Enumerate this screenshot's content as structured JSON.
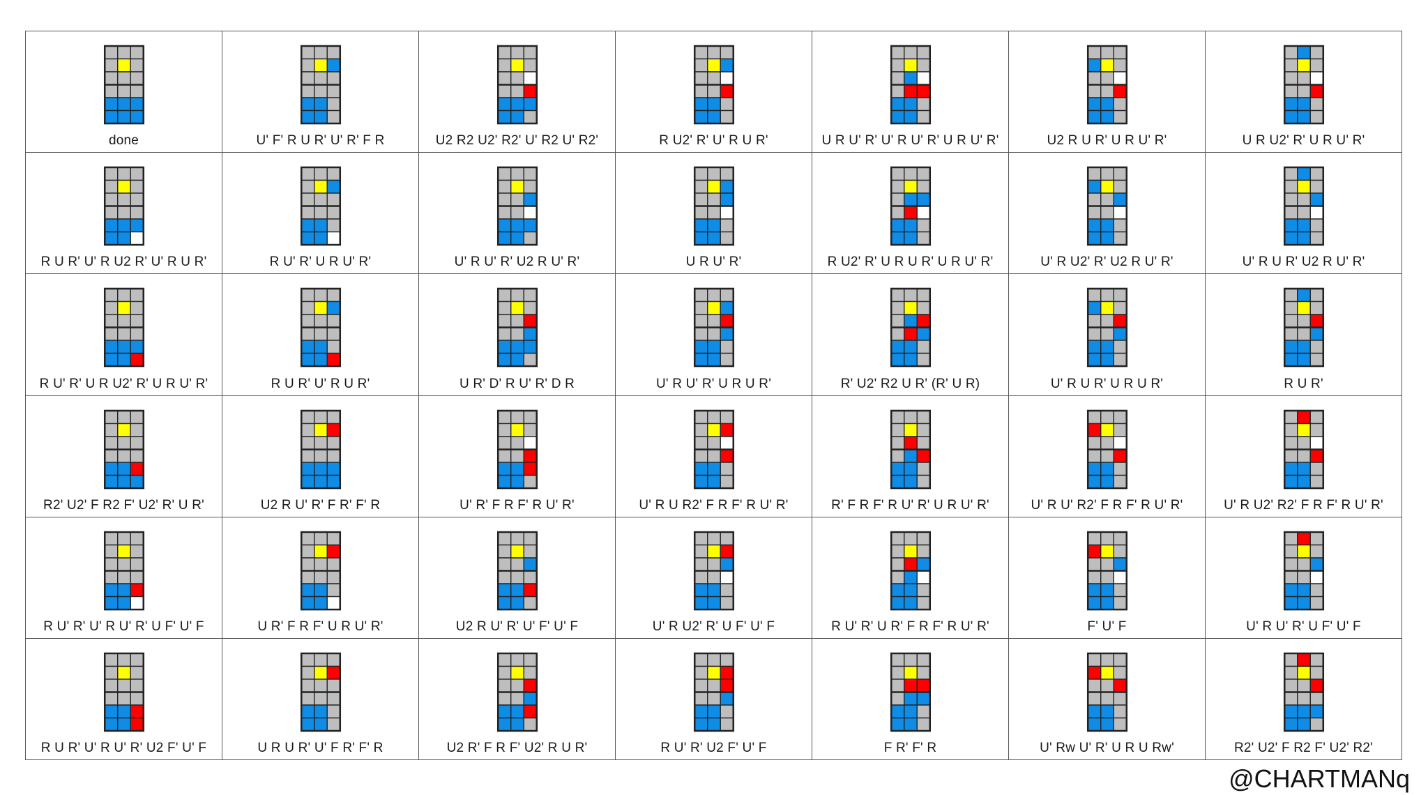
{
  "colors": {
    "G": "#bebebe",
    "Y": "#ffff00",
    "B": "#0f8ce6",
    "R": "#ff0000",
    "W": "#ffffff",
    "border": "#222222"
  },
  "credit": "@CHARTMANq",
  "cases": [
    {
      "alg": "done",
      "grid": [
        "GGG",
        "GYG",
        "GGG",
        "GGG",
        "BBB",
        "BBB"
      ]
    },
    {
      "alg": "U' F' R U R' U' R' F R",
      "grid": [
        "GGG",
        "GYB",
        "GGG",
        "GGG",
        "BBG",
        "BBG"
      ]
    },
    {
      "alg": "U2 R2 U2' R2' U' R2 U' R2'",
      "grid": [
        "GGG",
        "GYG",
        "GGW",
        "GGR",
        "BBB",
        "BBG"
      ]
    },
    {
      "alg": "R U2' R' U' R U R'",
      "grid": [
        "GGG",
        "GYB",
        "GGW",
        "GGR",
        "BBG",
        "BBG"
      ]
    },
    {
      "alg": "U R U' R' U' R U' R' U R U' R'",
      "grid": [
        "GGG",
        "GYG",
        "GBW",
        "GRR",
        "BBG",
        "BBG"
      ]
    },
    {
      "alg": "U2 R U R' U R U' R'",
      "grid": [
        "GGG",
        "BYG",
        "GGW",
        "GGR",
        "BBG",
        "BBG"
      ]
    },
    {
      "alg": "U R U2' R' U R U' R'",
      "grid": [
        "GBG",
        "GYG",
        "GGW",
        "GGR",
        "BBG",
        "BBG"
      ]
    },
    {
      "alg": "R U R' U' R U2 R' U' R U R'",
      "grid": [
        "GGG",
        "GYG",
        "GGG",
        "GGG",
        "BBB",
        "BBW"
      ]
    },
    {
      "alg": "R U' R' U R U' R'",
      "grid": [
        "GGG",
        "GYB",
        "GGG",
        "GGG",
        "BBG",
        "BBW"
      ]
    },
    {
      "alg": "U' R U' R' U2 R U' R'",
      "grid": [
        "GGG",
        "GYG",
        "GGB",
        "GGW",
        "BBB",
        "BBG"
      ]
    },
    {
      "alg": "U R U' R'",
      "grid": [
        "GGG",
        "GYB",
        "GGB",
        "GGW",
        "BBG",
        "BBG"
      ]
    },
    {
      "alg": "R U2' R' U R U R' U R U' R'",
      "grid": [
        "GGG",
        "GYG",
        "GBB",
        "GRW",
        "BBG",
        "BBG"
      ]
    },
    {
      "alg": "U' R U2' R' U2 R U' R'",
      "grid": [
        "GGG",
        "BYG",
        "GGB",
        "GGW",
        "BBG",
        "BBG"
      ]
    },
    {
      "alg": "U' R U R' U2 R U' R'",
      "grid": [
        "GBG",
        "GYG",
        "GGB",
        "GGW",
        "BBG",
        "BBG"
      ]
    },
    {
      "alg": "R U' R' U R U2' R' U R U' R'",
      "grid": [
        "GGG",
        "GYG",
        "GGG",
        "GGG",
        "BBB",
        "BBR"
      ]
    },
    {
      "alg": "R U R' U' R U R'",
      "grid": [
        "GGG",
        "GYB",
        "GGG",
        "GGG",
        "BBG",
        "BBR"
      ]
    },
    {
      "alg": "U R' D' R U' R' D R",
      "grid": [
        "GGG",
        "GYG",
        "GGR",
        "GGB",
        "BBB",
        "BBG"
      ]
    },
    {
      "alg": "U' R U' R' U R U R'",
      "grid": [
        "GGG",
        "GYB",
        "GGR",
        "GGB",
        "BBG",
        "BBG"
      ]
    },
    {
      "alg": "R' U2' R2 U R' (R' U R)",
      "grid": [
        "GGG",
        "GYG",
        "GBR",
        "GRB",
        "BBG",
        "BBG"
      ]
    },
    {
      "alg": "U' R U R' U R U R'",
      "grid": [
        "GGG",
        "BYG",
        "GGR",
        "GGB",
        "BBG",
        "BBG"
      ]
    },
    {
      "alg": "R U R'",
      "grid": [
        "GBG",
        "GYG",
        "GGR",
        "GGB",
        "BBG",
        "BBG"
      ]
    },
    {
      "alg": "R2' U2' F R2 F' U2' R' U R'",
      "grid": [
        "GGG",
        "GYG",
        "GGG",
        "GGG",
        "BBR",
        "BBB"
      ]
    },
    {
      "alg": "U2 R U' R' F R' F' R",
      "grid": [
        "GGG",
        "GYR",
        "GGG",
        "GGG",
        "BBB",
        "BBB"
      ]
    },
    {
      "alg": "U' R' F R F' R U' R'",
      "grid": [
        "GGG",
        "GYG",
        "GGW",
        "GGR",
        "BBR",
        "BBG"
      ]
    },
    {
      "alg": "U' R U R2' F R F' R U' R'",
      "grid": [
        "GGG",
        "GYR",
        "GGW",
        "GGR",
        "BBG",
        "BBG"
      ]
    },
    {
      "alg": "R' F R F' R U' R' U R U' R'",
      "grid": [
        "GGG",
        "GYG",
        "GRG",
        "GBR",
        "BBG",
        "BBG"
      ]
    },
    {
      "alg": "U' R U' R2' F R F' R U' R'",
      "grid": [
        "GGG",
        "RYG",
        "GGW",
        "GGR",
        "BBG",
        "BBG"
      ]
    },
    {
      "alg": "U' R U2' R2' F R F' R U' R'",
      "grid": [
        "GRG",
        "GYG",
        "GGW",
        "GGR",
        "BBG",
        "BBG"
      ]
    },
    {
      "alg": "R U' R' U' R U' R' U F' U' F",
      "grid": [
        "GGG",
        "GYG",
        "GGG",
        "GGG",
        "BBR",
        "BBW"
      ]
    },
    {
      "alg": "U R' F R F' U R U' R'",
      "grid": [
        "GGG",
        "GYR",
        "GGG",
        "GGG",
        "BBG",
        "BBW"
      ]
    },
    {
      "alg": "U2 R U' R' U' F' U' F",
      "grid": [
        "GGG",
        "GYG",
        "GGB",
        "GGG",
        "BBR",
        "BBG"
      ]
    },
    {
      "alg": "U' R U2' R' U F' U' F",
      "grid": [
        "GGG",
        "GYR",
        "GGB",
        "GGW",
        "BBG",
        "BBG"
      ]
    },
    {
      "alg": "R U' R' U R' F R F' R U' R'",
      "grid": [
        "GGG",
        "GYG",
        "GRB",
        "GBW",
        "BBG",
        "BBG"
      ]
    },
    {
      "alg": "F' U' F",
      "grid": [
        "GGG",
        "RYG",
        "GGB",
        "GGW",
        "BBG",
        "BBG"
      ]
    },
    {
      "alg": "U' R U' R' U F' U' F",
      "grid": [
        "GRG",
        "GYG",
        "GGB",
        "GGW",
        "BBG",
        "BBG"
      ]
    },
    {
      "alg": "R U R' U' R U' R' U2 F' U' F",
      "grid": [
        "GGG",
        "GYG",
        "GGG",
        "GGG",
        "BBR",
        "BBR"
      ]
    },
    {
      "alg": "U R U R' U' F R' F' R",
      "grid": [
        "GGG",
        "GYR",
        "GGG",
        "GGG",
        "BBG",
        "BBG"
      ]
    },
    {
      "alg": "U2 R' F R F' U2' R U R'",
      "grid": [
        "GGG",
        "GYG",
        "GGR",
        "GGB",
        "BBR",
        "BBG"
      ]
    },
    {
      "alg": "R U' R' U2 F' U' F",
      "grid": [
        "GGG",
        "GYR",
        "GGR",
        "GGB",
        "BBG",
        "BBG"
      ]
    },
    {
      "alg": "F R' F' R",
      "grid": [
        "GGG",
        "GYG",
        "GRR",
        "GBB",
        "BBG",
        "BBG"
      ]
    },
    {
      "alg": "U' Rw U' R' U R U Rw'",
      "grid": [
        "GGG",
        "RYG",
        "GGR",
        "GGG",
        "BBG",
        "BBG"
      ]
    },
    {
      "alg": "R2' U2' F R2 F' U2' R2'",
      "grid": [
        "GRG",
        "GYG",
        "GGR",
        "GGG",
        "BBB",
        "BBG"
      ]
    }
  ]
}
